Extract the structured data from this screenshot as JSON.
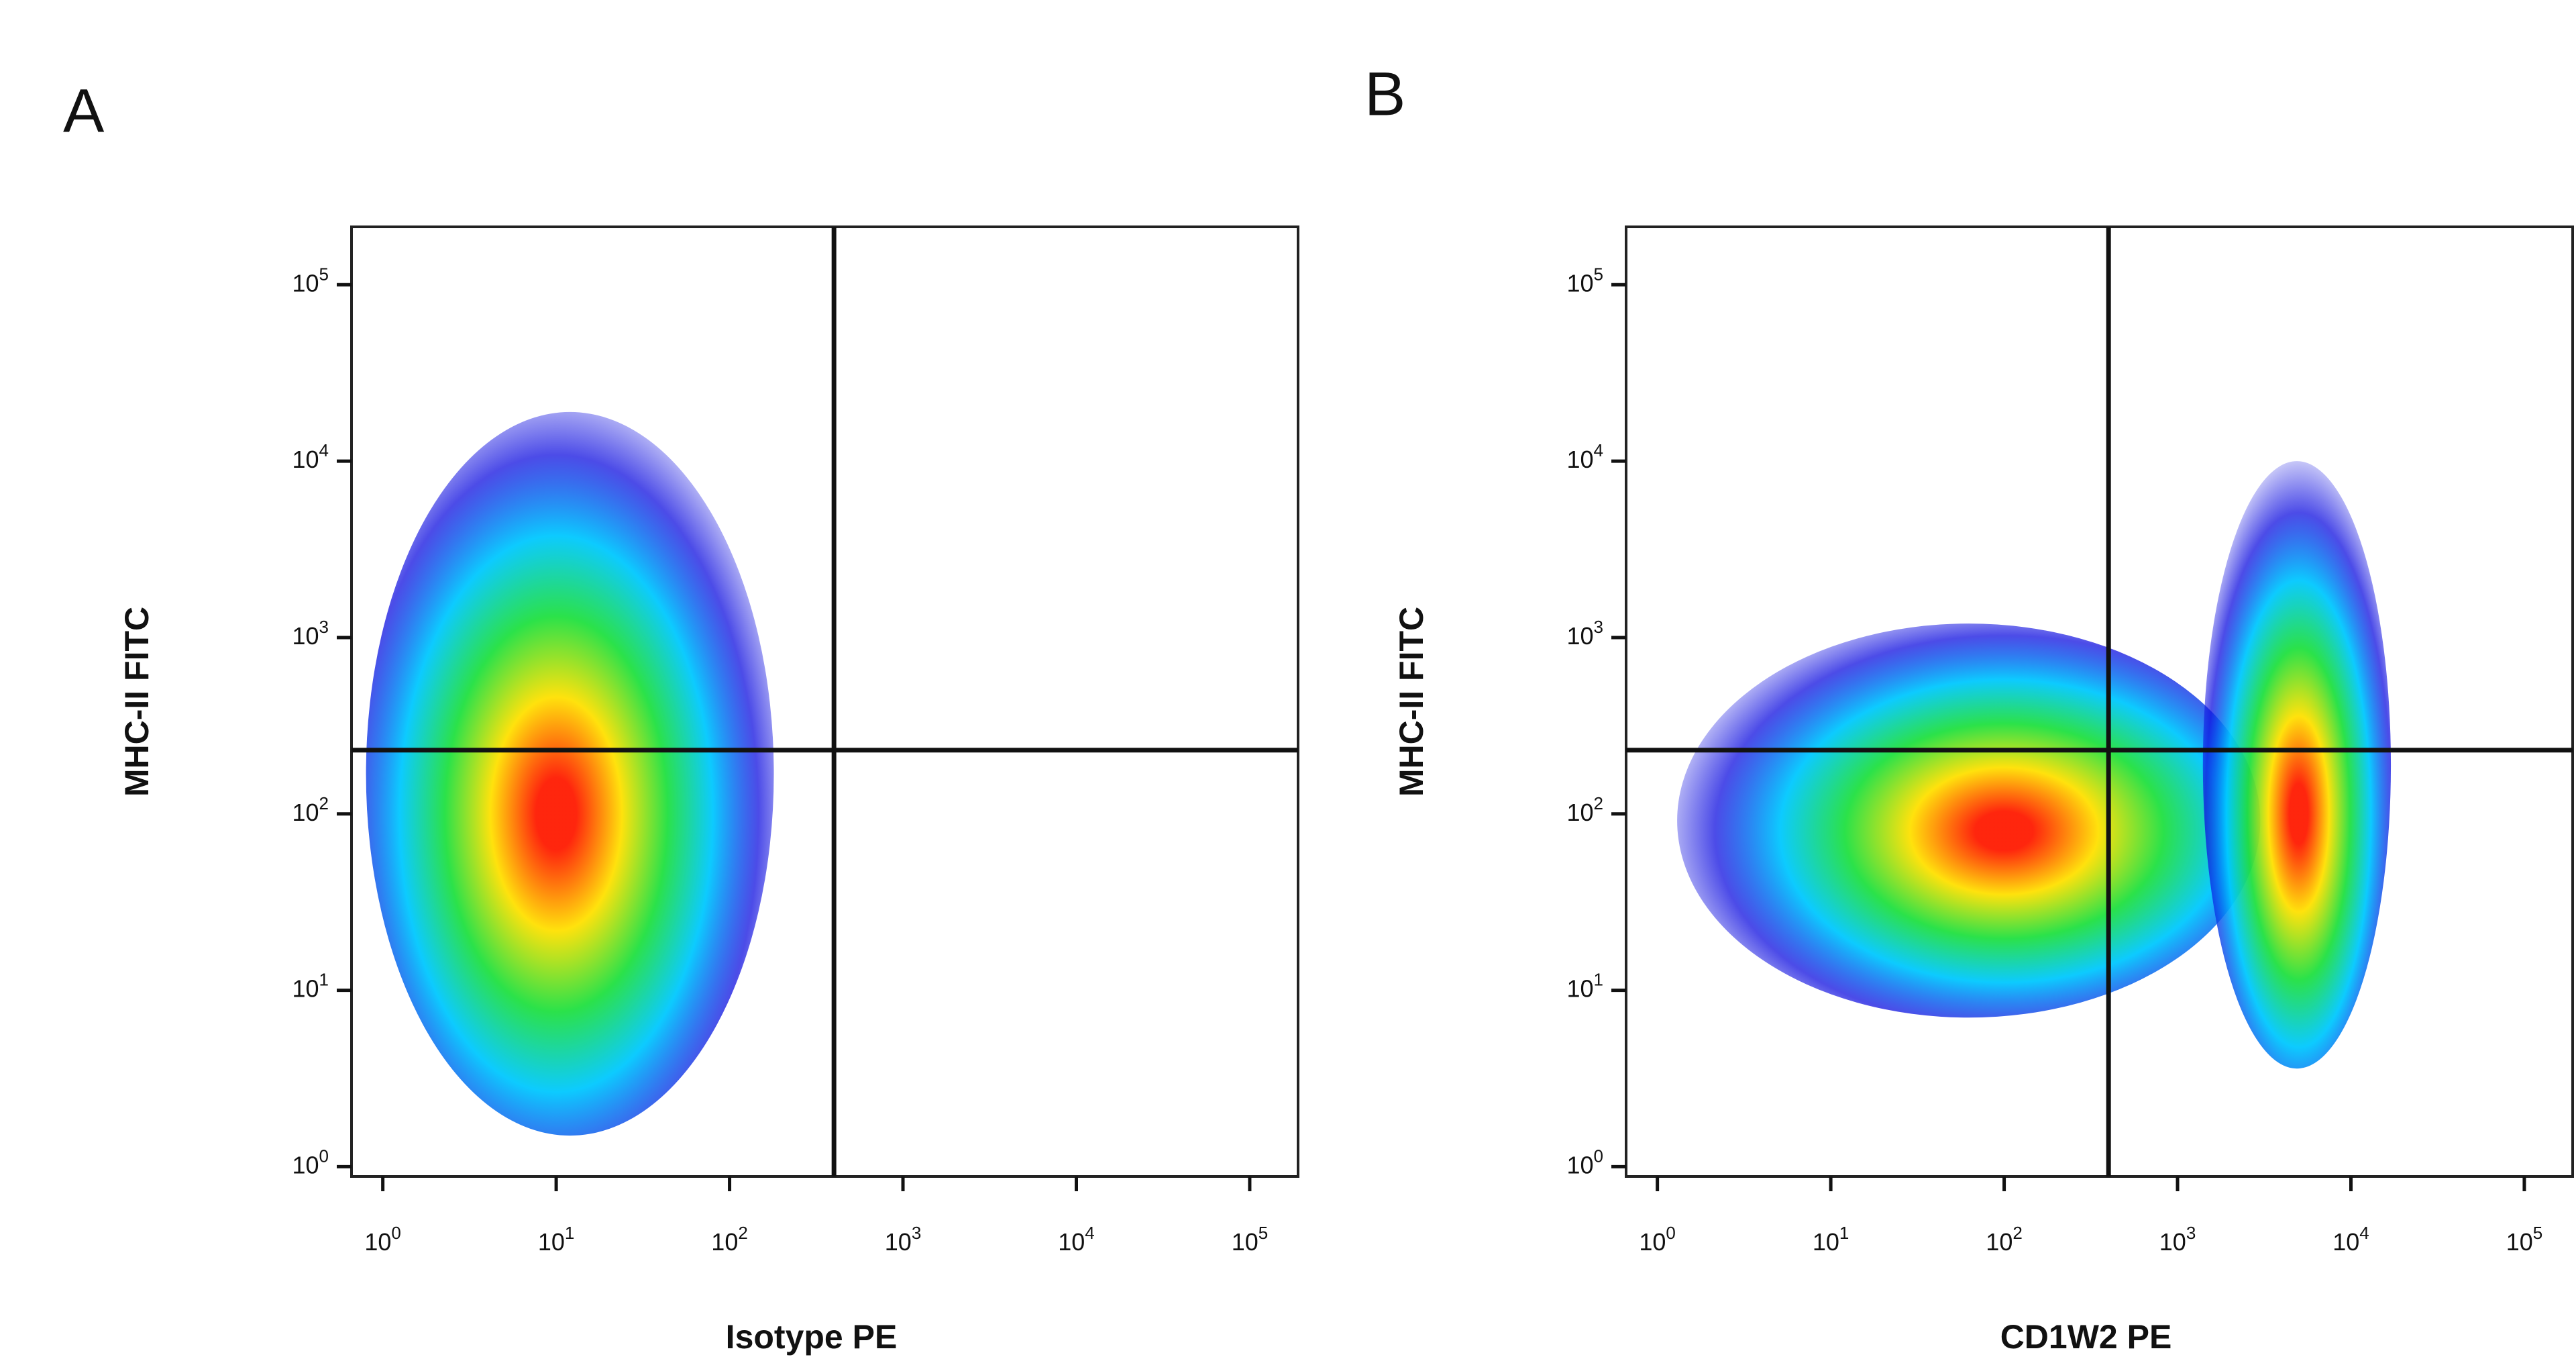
{
  "chart_data": [
    {
      "type": "density",
      "panel_label": "A",
      "x_label": "Isotype PE",
      "y_label": "MHC-II FITC",
      "xscale": "log",
      "yscale": "log",
      "xlim": [
        0.66,
        190000
      ],
      "ylim": [
        0.88,
        213000
      ],
      "xticks": [
        {
          "value": 1,
          "label": "10^0"
        },
        {
          "value": 10,
          "label": "10^1"
        },
        {
          "value": 100,
          "label": "10^2"
        },
        {
          "value": 1000,
          "label": "10^3"
        },
        {
          "value": 10000,
          "label": "10^4"
        },
        {
          "value": 100000,
          "label": "10^5"
        }
      ],
      "yticks": [
        {
          "value": 1,
          "label": "10^0"
        },
        {
          "value": 10,
          "label": "10^1"
        },
        {
          "value": 100,
          "label": "10^2"
        },
        {
          "value": 1000,
          "label": "10^3"
        },
        {
          "value": 10000,
          "label": "10^4"
        },
        {
          "value": 100000,
          "label": "10^5"
        }
      ],
      "gate": {
        "x": 400,
        "y": 230
      },
      "density_colors": [
        "#ff1a00",
        "#ffe000",
        "#20e040",
        "#00c8ff",
        "#1010e0"
      ],
      "populations": [
        {
          "x": 10,
          "y": 100,
          "x_range": [
            0.8,
            180
          ],
          "y_range": [
            1.5,
            19000
          ]
        }
      ]
    },
    {
      "type": "density",
      "panel_label": "B",
      "x_label": "CD1W2 PE",
      "y_label": "MHC-II FITC",
      "xscale": "log",
      "yscale": "log",
      "xlim": [
        0.66,
        190000
      ],
      "ylim": [
        0.88,
        213000
      ],
      "xticks": [
        {
          "value": 1,
          "label": "10^0"
        },
        {
          "value": 10,
          "label": "10^1"
        },
        {
          "value": 100,
          "label": "10^2"
        },
        {
          "value": 1000,
          "label": "10^3"
        },
        {
          "value": 10000,
          "label": "10^4"
        },
        {
          "value": 100000,
          "label": "10^5"
        }
      ],
      "yticks": [
        {
          "value": 1,
          "label": "10^0"
        },
        {
          "value": 10,
          "label": "10^1"
        },
        {
          "value": 100,
          "label": "10^2"
        },
        {
          "value": 1000,
          "label": "10^3"
        },
        {
          "value": 10000,
          "label": "10^4"
        },
        {
          "value": 100000,
          "label": "10^5"
        }
      ],
      "gate": {
        "x": 400,
        "y": 230
      },
      "density_colors": [
        "#ff1a00",
        "#ffe000",
        "#20e040",
        "#00c8ff",
        "#1010e0"
      ],
      "populations": [
        {
          "x": 100,
          "y": 80,
          "x_range": [
            1.3,
            3000
          ],
          "y_range": [
            7,
            1200
          ]
        },
        {
          "x": 5000,
          "y": 100,
          "x_range": [
            1400,
            17000
          ],
          "y_range": [
            3.6,
            10000
          ]
        }
      ]
    }
  ]
}
